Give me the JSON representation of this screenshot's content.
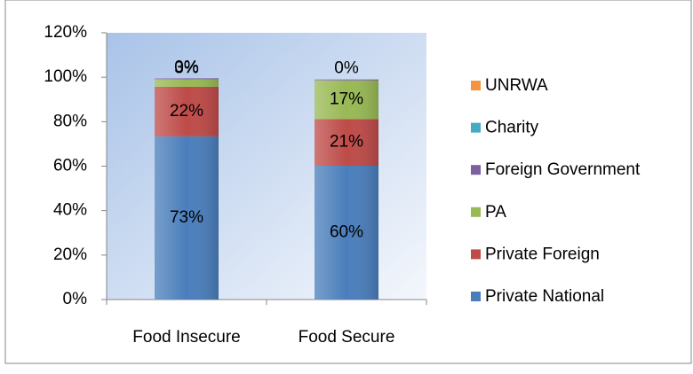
{
  "chart_data": {
    "type": "stacked_bar",
    "categories": [
      "Food Insecure",
      "Food Secure"
    ],
    "series": [
      {
        "name": "Private National",
        "color": "#4a7ebb",
        "values": [
          73.4,
          60.2
        ],
        "value_labels": [
          "73%",
          "60%"
        ]
      },
      {
        "name": "Private Foreign",
        "color": "#be4b48",
        "values": [
          22.3,
          21.0
        ],
        "value_labels": [
          "22%",
          "21%"
        ]
      },
      {
        "name": "PA",
        "color": "#98b954",
        "values": [
          3.4,
          17.4
        ],
        "value_labels": [
          "3%",
          "17%"
        ]
      },
      {
        "name": "Foreign Government",
        "color": "#7d60a0",
        "values": [
          0.4,
          0.4
        ],
        "value_labels": [
          "0%",
          "0%"
        ]
      },
      {
        "name": "Charity",
        "color": "#46aac5",
        "values": [
          0,
          0
        ],
        "value_labels": [
          null,
          null
        ]
      },
      {
        "name": "UNRWA",
        "color": "#f69240",
        "values": [
          0,
          0
        ],
        "value_labels": [
          null,
          null
        ]
      }
    ],
    "ylim": [
      0,
      120
    ],
    "yticks": [
      {
        "value": 0,
        "label": "0%"
      },
      {
        "value": 20,
        "label": "20%"
      },
      {
        "value": 40,
        "label": "40%"
      },
      {
        "value": 60,
        "label": "60%"
      },
      {
        "value": 80,
        "label": "80%"
      },
      {
        "value": 100,
        "label": "100%"
      },
      {
        "value": 120,
        "label": "120%"
      }
    ],
    "legend": "right"
  }
}
